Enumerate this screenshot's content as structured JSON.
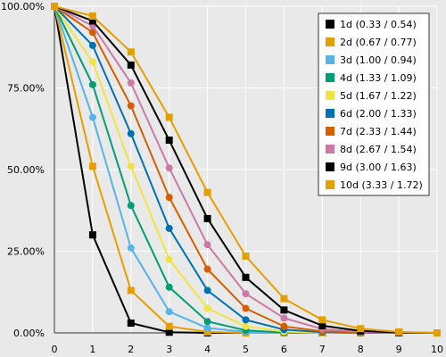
{
  "chart_data": {
    "type": "line",
    "title": "",
    "xlabel": "",
    "ylabel": "",
    "xlim": [
      0,
      10
    ],
    "ylim": [
      0,
      100
    ],
    "grid": true,
    "legend_position": "top-right",
    "x_ticks": [
      "0",
      "1",
      "2",
      "3",
      "4",
      "5",
      "6",
      "7",
      "8",
      "9",
      "10"
    ],
    "y_ticks": [
      "0.00%",
      "25.00%",
      "50.00%",
      "75.00%",
      "100.00%"
    ],
    "series": [
      {
        "name": "1d (0.33 / 0.54)",
        "color": "#000000",
        "marker": "square",
        "x": [
          0,
          1,
          2,
          3,
          4,
          5,
          6,
          7,
          8,
          9,
          10
        ],
        "y": [
          100,
          30,
          3,
          0.2,
          0,
          0,
          0,
          0,
          0,
          0,
          0
        ]
      },
      {
        "name": "2d (0.67 / 0.77)",
        "color": "#e69f00",
        "marker": "square",
        "x": [
          0,
          1,
          2,
          3,
          4,
          5,
          6,
          7,
          8,
          9,
          10
        ],
        "y": [
          100,
          51,
          13,
          2,
          0.3,
          0,
          0,
          0,
          0,
          0,
          0
        ]
      },
      {
        "name": "3d (1.00 / 0.94)",
        "color": "#56b4e9",
        "marker": "circle",
        "x": [
          0,
          1,
          2,
          3,
          4,
          5,
          6,
          7,
          8,
          9,
          10
        ],
        "y": [
          100,
          66,
          26,
          6.5,
          1.5,
          0.3,
          0,
          0,
          0,
          0,
          0
        ]
      },
      {
        "name": "4d (1.33 / 1.09)",
        "color": "#009e73",
        "marker": "circle",
        "x": [
          0,
          1,
          2,
          3,
          4,
          5,
          6,
          7,
          8,
          9,
          10
        ],
        "y": [
          100,
          76,
          39,
          14,
          3.5,
          0.8,
          0.1,
          0,
          0,
          0,
          0
        ]
      },
      {
        "name": "5d (1.67 / 1.22)",
        "color": "#f0e442",
        "marker": "circle",
        "x": [
          0,
          1,
          2,
          3,
          4,
          5,
          6,
          7,
          8,
          9,
          10
        ],
        "y": [
          100,
          83,
          51,
          22.5,
          7.5,
          2,
          0.4,
          0,
          0,
          0,
          0
        ]
      },
      {
        "name": "6d (2.00 / 1.33)",
        "color": "#0072b2",
        "marker": "circle",
        "x": [
          0,
          1,
          2,
          3,
          4,
          5,
          6,
          7,
          8,
          9,
          10
        ],
        "y": [
          100,
          88,
          61,
          32,
          13,
          4,
          1,
          0.2,
          0,
          0,
          0
        ]
      },
      {
        "name": "7d (2.33 / 1.44)",
        "color": "#d55e00",
        "marker": "circle",
        "x": [
          0,
          1,
          2,
          3,
          4,
          5,
          6,
          7,
          8,
          9,
          10
        ],
        "y": [
          100,
          92,
          69.5,
          41.5,
          19.5,
          7.5,
          2,
          0.5,
          0.1,
          0,
          0
        ]
      },
      {
        "name": "8d (2.67 / 1.54)",
        "color": "#cc79a7",
        "marker": "circle",
        "x": [
          0,
          1,
          2,
          3,
          4,
          5,
          6,
          7,
          8,
          9,
          10
        ],
        "y": [
          100,
          94,
          76.5,
          50.5,
          27,
          12,
          4.5,
          1.2,
          0.3,
          0,
          0
        ]
      },
      {
        "name": "9d (3.00 / 1.63)",
        "color": "#000000",
        "marker": "square",
        "x": [
          0,
          1,
          2,
          3,
          4,
          5,
          6,
          7,
          8,
          9,
          10
        ],
        "y": [
          100,
          95.5,
          82,
          59,
          35,
          17,
          7,
          2.2,
          0.6,
          0.1,
          0
        ]
      },
      {
        "name": "10d (3.33 / 1.72)",
        "color": "#e69f00",
        "marker": "square",
        "x": [
          0,
          1,
          2,
          3,
          4,
          5,
          6,
          7,
          8,
          9,
          10
        ],
        "y": [
          100,
          97,
          86,
          66,
          43,
          23.5,
          10.5,
          4,
          1.3,
          0.3,
          0
        ]
      }
    ]
  }
}
